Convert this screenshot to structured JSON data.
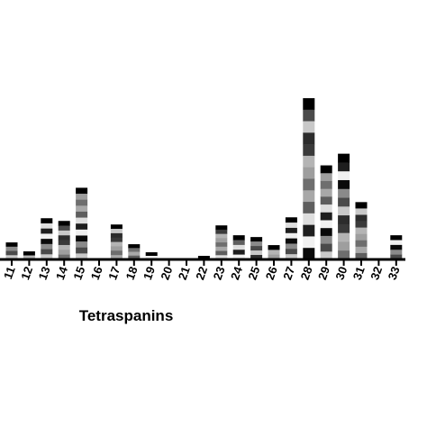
{
  "chart_data": {
    "type": "bar",
    "stacked": true,
    "title": "",
    "xlabel": "Tetraspanins",
    "ylabel": "",
    "categories": [
      "11",
      "12",
      "13",
      "14",
      "15",
      "16",
      "17",
      "18",
      "19",
      "20",
      "21",
      "22",
      "23",
      "24",
      "25",
      "26",
      "27",
      "28",
      "29",
      "30",
      "31",
      "32",
      "33"
    ],
    "values": [
      19,
      9,
      46,
      43,
      80,
      0,
      39,
      17,
      8,
      0,
      0,
      4,
      38,
      27,
      25,
      16,
      47,
      180,
      105,
      118,
      64,
      0,
      27
    ],
    "segment_counts": [
      4,
      2,
      8,
      8,
      12,
      0,
      8,
      4,
      2,
      0,
      0,
      1,
      8,
      5,
      5,
      3,
      8,
      14,
      12,
      12,
      9,
      0,
      5
    ],
    "ylim": [
      0,
      185
    ],
    "grid": false,
    "legend": "none",
    "segment_palette": [
      "#0a0a0a",
      "#3a3a3a",
      "#5e5e5e",
      "#8a8a8a",
      "#b4b4b4",
      "#dedede",
      "#4a4a4a",
      "#9e9e9e",
      "#1e1e1e",
      "#c8c8c8",
      "#6e6e6e",
      "#f0f0f0",
      "#2c2c2c",
      "#a8a8a8"
    ],
    "axis_color": "#000000"
  }
}
